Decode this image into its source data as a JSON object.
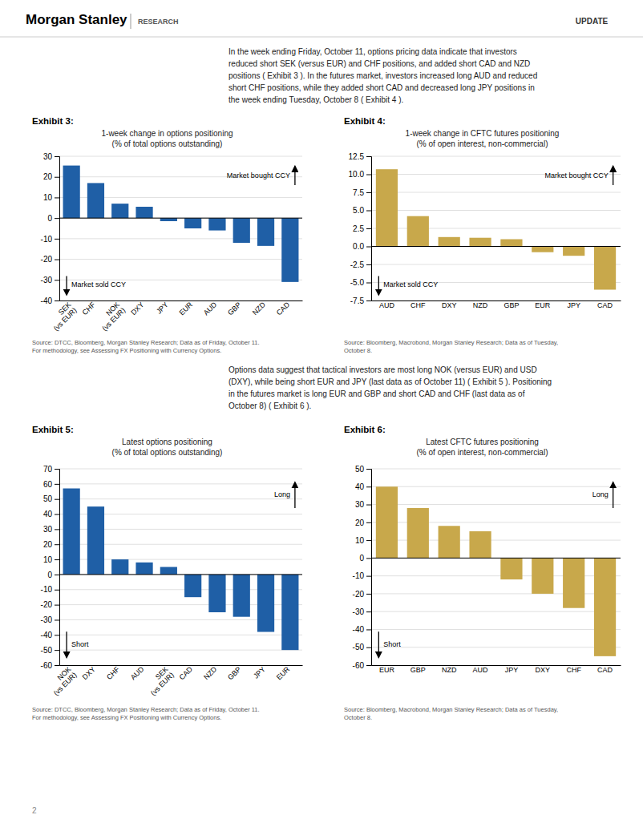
{
  "page": {
    "title": "Morgan Stanley",
    "subtitle": "RESEARCH",
    "tag": "UPDATE",
    "paragraphs": [
      "In the week ending Friday, October 11, options pricing data indicate that investors\nreduced short SEK (versus EUR) and CHF positions, and added short CAD and NZD\npositions ( Exhibit 3 ). In the futures market, investors increased long AUD and reduced\nshort CHF positions, while they added short CAD and decreased long JPY positions in\nthe week ending Tuesday, October 8 ( Exhibit 4 ).",
      "Options data suggest that tactical investors are most long NOK (versus EUR) and USD\n(DXY), while being short EUR and JPY (last data as of October 11) ( Exhibit 5 ). Positioning\nin the futures market is long EUR and GBP and short CAD and CHF (last data as of\nOctober 8) ( Exhibit 6 )."
    ],
    "page_number": "2"
  },
  "chart_data": [
    {
      "type": "bar",
      "title": "Exhibit 3:",
      "subtitle": "1-week change in options positioning\n(% of total options outstanding)",
      "categories": [
        "SEK\n(vs EUR)",
        "CHF",
        "NOK\n(vs EUR)",
        "DXY",
        "JPY",
        "EUR",
        "AUD",
        "GBP",
        "NZD",
        "CAD"
      ],
      "values": [
        25.5,
        17.0,
        7.0,
        5.5,
        -1.5,
        -5.0,
        -6.0,
        -12.0,
        -13.5,
        -31.0
      ],
      "color": "#1f5fa6",
      "ylim": [
        -40,
        30
      ],
      "yticks": [
        -40,
        -30,
        -20,
        -10,
        0,
        10,
        20,
        30
      ],
      "grid": true,
      "annotations": [
        "Market bought CCY",
        "Market sold CCY"
      ],
      "source": "Source: DTCC, Bloomberg, Morgan Stanley Research; Data as of Friday, October 11.\nFor methodology, see Assessing FX Positioning with Currency Options."
    },
    {
      "type": "bar",
      "title": "Exhibit 4:",
      "subtitle": "1-week change in CFTC futures positioning\n(% of open interest, non-commercial)",
      "categories": [
        "AUD",
        "CHF",
        "DXY",
        "NZD",
        "GBP",
        "EUR",
        "JPY",
        "CAD"
      ],
      "values": [
        10.7,
        4.2,
        1.3,
        1.2,
        1.0,
        -0.8,
        -1.3,
        -6.0
      ],
      "color": "#c8a84b",
      "ylim": [
        -7.5,
        12.5
      ],
      "yticks": [
        -7.5,
        {
          "value": -5.0,
          "label": "-5.0"
        },
        -2.5,
        {
          "value": 0.0,
          "label": "0.0"
        },
        2.5,
        {
          "value": 5.0,
          "label": "5.0"
        },
        7.5,
        {
          "value": 10.0,
          "label": "10.0"
        },
        12.5
      ],
      "grid": true,
      "annotations": [
        "Market bought CCY",
        "Market sold CCY"
      ],
      "source": "Source: Bloomberg, Macrobond, Morgan Stanley Research; Data as of Tuesday,\nOctober 8."
    },
    {
      "type": "bar",
      "title": "Exhibit 5:",
      "subtitle": "Latest options positioning\n(% of total options outstanding)",
      "categories": [
        "NOK\n(vs EUR)",
        "DXY",
        "CHF",
        "AUD",
        "SEK\n(vs EUR)",
        "CAD",
        "NZD",
        "GBP",
        "JPY",
        "EUR"
      ],
      "values": [
        57.0,
        45.0,
        10.0,
        8.0,
        5.0,
        -15.0,
        -25.0,
        -28.0,
        -38.0,
        -50.0
      ],
      "color": "#1f5fa6",
      "ylim": [
        -60,
        70
      ],
      "yticks": [
        -60,
        -50,
        -40,
        -30,
        -20,
        -10,
        0,
        10,
        20,
        30,
        40,
        50,
        60,
        70
      ],
      "grid": true,
      "annotations": [
        "Long",
        "Short"
      ],
      "source": "Source: DTCC, Bloomberg, Morgan Stanley Research; Data as of Friday, October 11.\nFor methodology, see Assessing FX Positioning with Currency Options."
    },
    {
      "type": "bar",
      "title": "Exhibit 6:",
      "subtitle": "Latest CFTC futures positioning\n(% of open interest, non-commercial)",
      "categories": [
        "EUR",
        "GBP",
        "NZD",
        "AUD",
        "JPY",
        "DXY",
        "CHF",
        "CAD"
      ],
      "values": [
        40.0,
        28.0,
        18.0,
        15.0,
        -12.0,
        -20.0,
        -28.0,
        -55.0
      ],
      "color": "#c8a84b",
      "ylim": [
        -60,
        50
      ],
      "yticks": [
        -60,
        -50,
        -40,
        -30,
        -20,
        -10,
        0,
        10,
        20,
        30,
        40,
        50
      ],
      "grid": true,
      "annotations": [
        "Long",
        "Short"
      ],
      "source": "Source: Bloomberg, Macrobond, Morgan Stanley Research; Data as of Tuesday,\nOctober 8."
    }
  ]
}
